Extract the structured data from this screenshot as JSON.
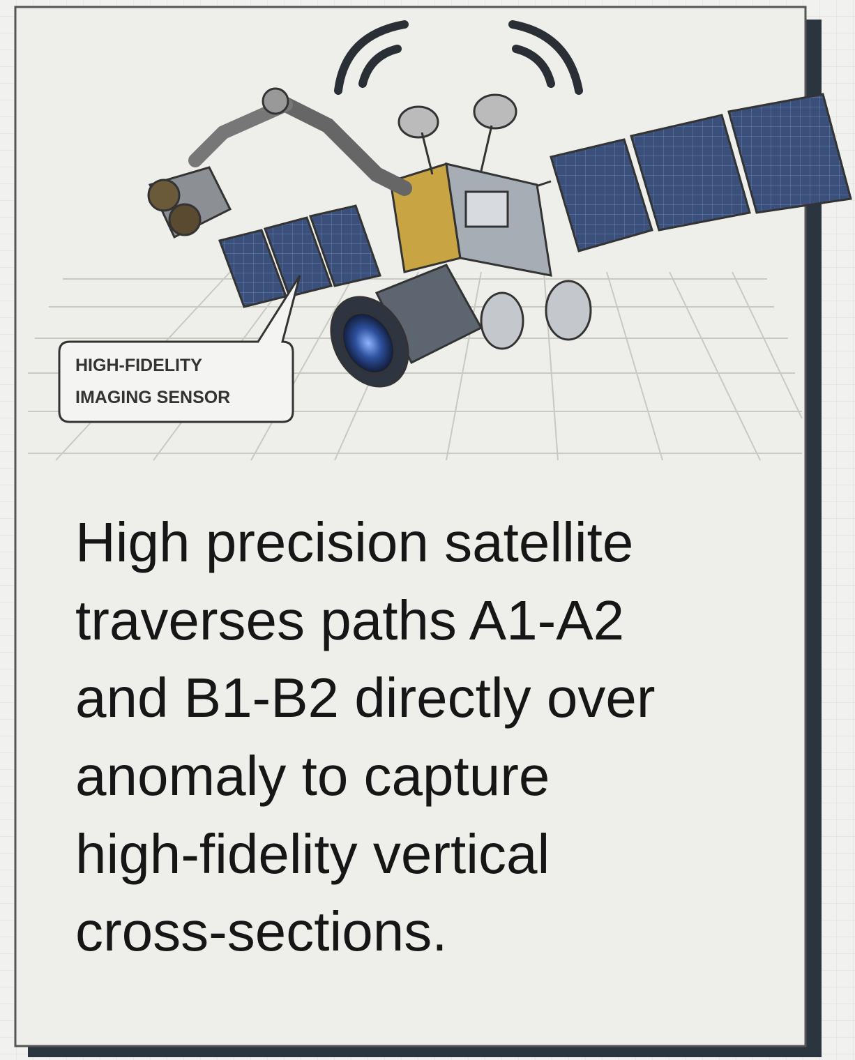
{
  "callout": {
    "lines": [
      "HIGH-FIDELITY",
      "IMAGING SENSOR"
    ]
  },
  "caption": {
    "lines": [
      "High precision satellite",
      "traverses paths A1-A2",
      "and B1-B2 directly over",
      "anomaly to capture",
      "high-fidelity vertical",
      "cross-sections."
    ]
  }
}
